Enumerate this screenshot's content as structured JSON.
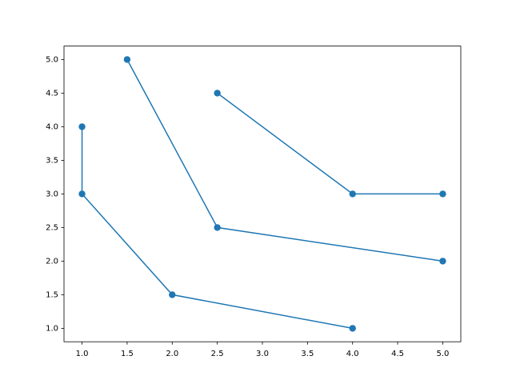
{
  "chart_data": {
    "type": "line",
    "series": [
      {
        "color": "#1f77b4",
        "x": [
          1,
          1,
          2,
          4
        ],
        "values": [
          4,
          3,
          1.5,
          1
        ]
      },
      {
        "color": "#1f77b4",
        "x": [
          1.5,
          2.5,
          5
        ],
        "values": [
          5,
          2.5,
          2
        ]
      },
      {
        "color": "#1f77b4",
        "x": [
          2.5,
          4,
          5
        ],
        "values": [
          4.5,
          3,
          3
        ]
      }
    ],
    "xlim": [
      0.8,
      5.2
    ],
    "ylim": [
      0.8,
      5.2
    ],
    "xticks": [
      {
        "value": 1,
        "label": "1.0"
      },
      {
        "value": 1.5,
        "label": "1.5"
      },
      {
        "value": 2,
        "label": "2.0"
      },
      {
        "value": 2.5,
        "label": "2.5"
      },
      {
        "value": 3,
        "label": "3.0"
      },
      {
        "value": 3.5,
        "label": "3.5"
      },
      {
        "value": 4,
        "label": "4.0"
      },
      {
        "value": 4.5,
        "label": "4.5"
      },
      {
        "value": 5,
        "label": "5.0"
      }
    ],
    "yticks": [
      {
        "value": 1,
        "label": "1.0"
      },
      {
        "value": 1.5,
        "label": "1.5"
      },
      {
        "value": 2,
        "label": "2.0"
      },
      {
        "value": 2.5,
        "label": "2.5"
      },
      {
        "value": 3,
        "label": "3.0"
      },
      {
        "value": 3.5,
        "label": "3.5"
      },
      {
        "value": 4,
        "label": "4.0"
      },
      {
        "value": 4.5,
        "label": "4.5"
      },
      {
        "value": 5,
        "label": "5.0"
      }
    ],
    "grid": false,
    "markers": true
  }
}
